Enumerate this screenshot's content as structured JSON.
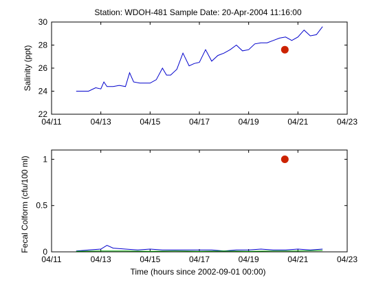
{
  "figure": {
    "title": "Station: WDOH-481  Sample Date: 20-Apr-2004 11:16:00"
  },
  "chart_data": [
    {
      "type": "line",
      "ylabel": "Salinity (ppt)",
      "xlabel": "",
      "xlim": [
        "04/11",
        "04/23"
      ],
      "ylim": [
        22,
        30
      ],
      "xticks": [
        "04/11",
        "04/13",
        "04/15",
        "04/17",
        "04/19",
        "04/21",
        "04/23"
      ],
      "yticks": [
        "22",
        "24",
        "26",
        "28",
        "30"
      ],
      "grid": false,
      "series": [
        {
          "color": "#0000cc",
          "x": [
            "04/12 00:00",
            "04/12 12:00",
            "04/12 19:00",
            "04/13 00:00",
            "04/13 03:00",
            "04/13 06:00",
            "04/13 12:00",
            "04/13 18:00",
            "04/14 00:00",
            "04/14 04:00",
            "04/14 08:00",
            "04/14 14:00",
            "04/14 20:00",
            "04/15 00:00",
            "04/15 06:00",
            "04/15 12:00",
            "04/15 16:00",
            "04/15 20:00",
            "04/16 02:00",
            "04/16 08:00",
            "04/16 14:00",
            "04/16 19:00",
            "04/17 00:00",
            "04/17 06:00",
            "04/17 12:00",
            "04/17 18:00",
            "04/18 00:00",
            "04/18 06:00",
            "04/18 12:00",
            "04/18 18:00",
            "04/19 00:00",
            "04/19 06:00",
            "04/19 12:00",
            "04/19 18:00",
            "04/20 00:00",
            "04/20 06:00",
            "04/20 12:00",
            "04/20 18:00",
            "04/21 00:00",
            "04/21 06:00",
            "04/21 12:00",
            "04/21 18:00",
            "04/22 00:00"
          ],
          "values": [
            24.0,
            24.0,
            24.3,
            24.2,
            24.8,
            24.4,
            24.4,
            24.5,
            24.4,
            25.6,
            24.8,
            24.7,
            24.7,
            24.7,
            25.0,
            26.0,
            25.4,
            25.4,
            25.9,
            27.3,
            26.2,
            26.4,
            26.5,
            27.6,
            26.6,
            27.1,
            27.3,
            27.6,
            28.0,
            27.5,
            27.6,
            28.1,
            28.2,
            28.2,
            28.4,
            28.6,
            28.7,
            28.4,
            28.7,
            29.3,
            28.8,
            28.9,
            29.6
          ]
        }
      ],
      "markers": [
        {
          "x": "04/20 11:16",
          "y": 27.6,
          "color": "#cc2200"
        }
      ]
    },
    {
      "type": "line",
      "ylabel": "Fecal Colform (cfu/100 ml)",
      "xlabel": "Time (hours since 2002-09-01 00:00)",
      "xlim": [
        "04/11",
        "04/23"
      ],
      "ylim": [
        0,
        1.1
      ],
      "xticks": [
        "04/11",
        "04/13",
        "04/15",
        "04/17",
        "04/19",
        "04/21",
        "04/23"
      ],
      "yticks": [
        "0",
        "0.5",
        "1"
      ],
      "grid": false,
      "series": [
        {
          "color": "#0000cc",
          "x": [
            "04/12 00:00",
            "04/12 12:00",
            "04/13 00:00",
            "04/13 06:00",
            "04/13 12:00",
            "04/14 00:00",
            "04/14 12:00",
            "04/15 00:00",
            "04/15 12:00",
            "04/16 00:00",
            "04/16 12:00",
            "04/17 00:00",
            "04/17 12:00",
            "04/18 00:00",
            "04/18 12:00",
            "04/19 00:00",
            "04/19 12:00",
            "04/20 00:00",
            "04/20 12:00",
            "04/21 00:00",
            "04/21 12:00",
            "04/22 00:00"
          ],
          "values": [
            0.01,
            0.02,
            0.03,
            0.07,
            0.04,
            0.03,
            0.02,
            0.03,
            0.02,
            0.02,
            0.02,
            0.02,
            0.02,
            0.01,
            0.02,
            0.02,
            0.03,
            0.02,
            0.02,
            0.03,
            0.02,
            0.03
          ]
        },
        {
          "color": "#00aa00",
          "x": [
            "04/12 00:00",
            "04/13 00:00",
            "04/14 00:00",
            "04/15 00:00",
            "04/16 00:00",
            "04/17 00:00",
            "04/18 00:00",
            "04/19 00:00",
            "04/20 00:00",
            "04/21 00:00",
            "04/22 00:00"
          ],
          "values": [
            0.005,
            0.01,
            0.01,
            0.005,
            0.01,
            0.005,
            0.01,
            0.005,
            0.01,
            0.01,
            0.015
          ]
        }
      ],
      "markers": [
        {
          "x": "04/20 11:16",
          "y": 1.0,
          "color": "#cc2200"
        }
      ]
    }
  ]
}
